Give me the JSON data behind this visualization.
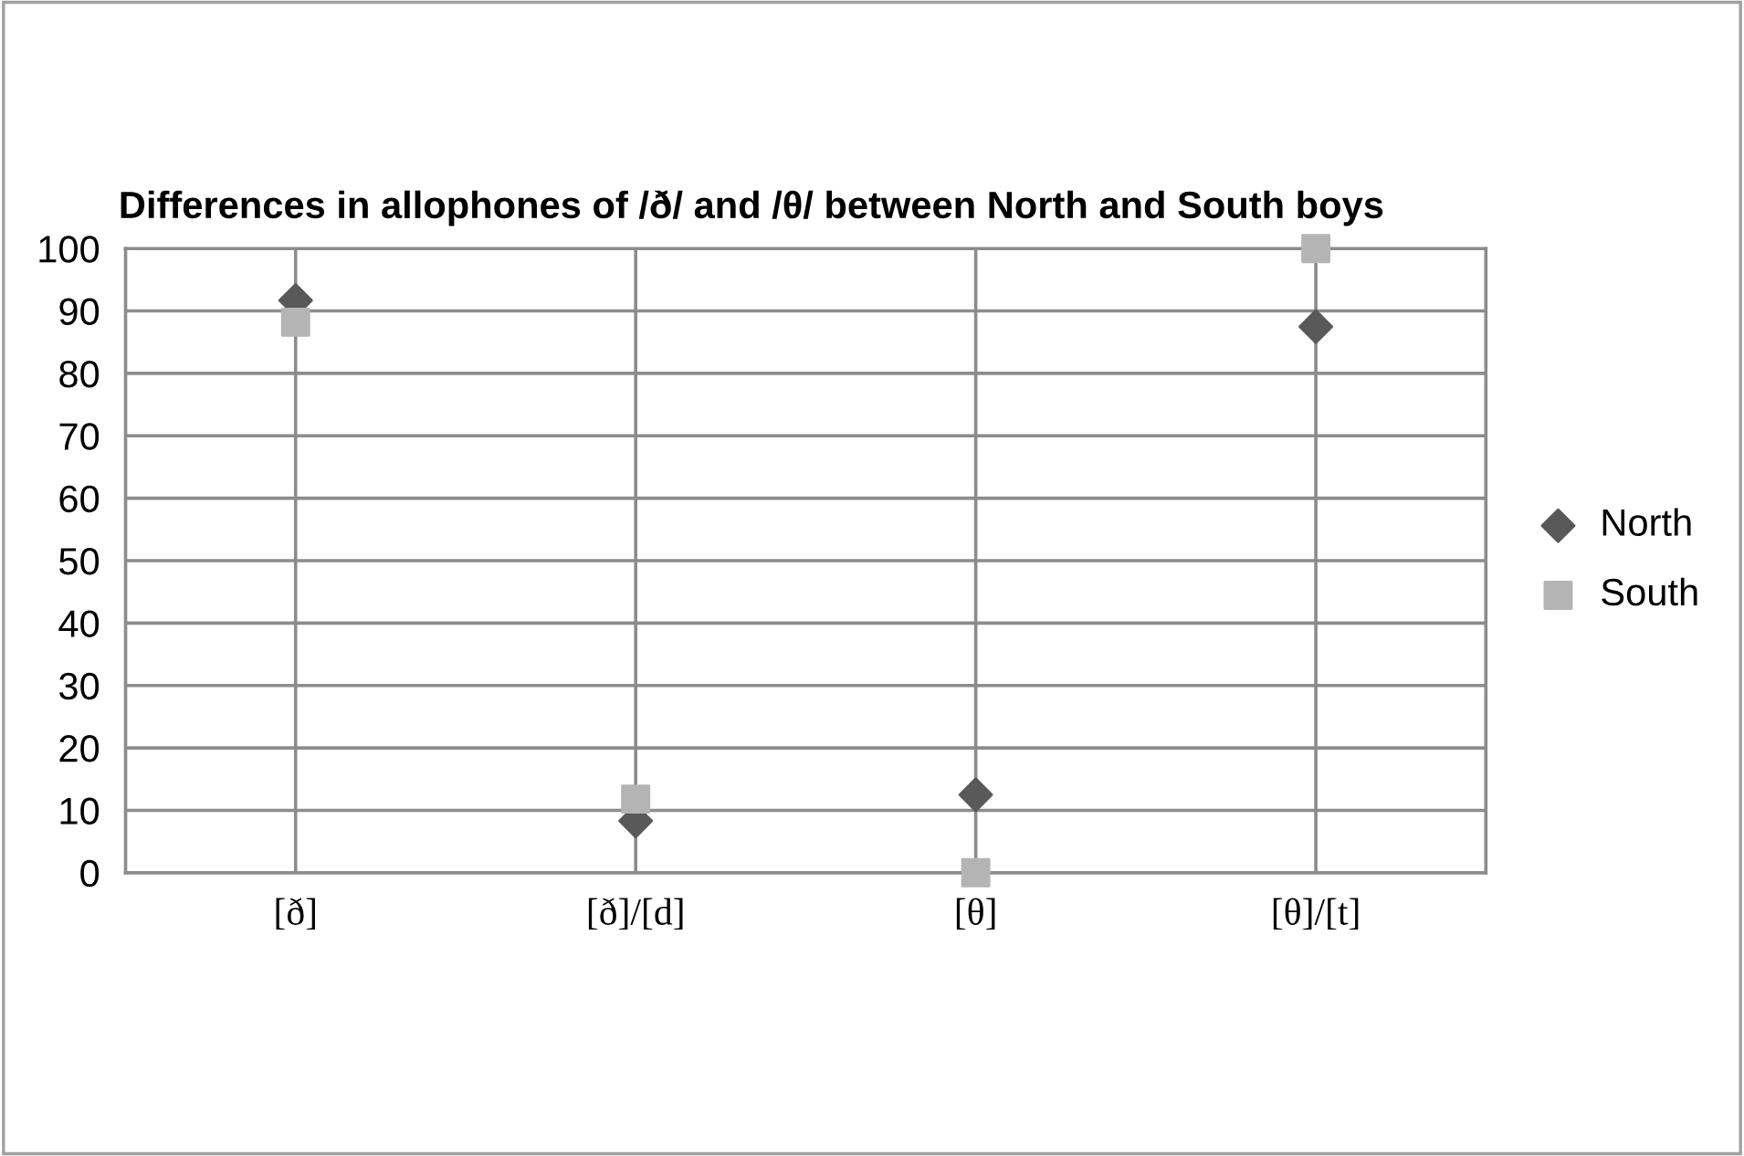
{
  "chart_data": {
    "type": "scatter",
    "title": "Differences in allophones of /ð/ and /θ/ between North and South boys",
    "categories": [
      "[ð]",
      "[ð]/[d]",
      "[θ]",
      "[θ]/[t]"
    ],
    "series": [
      {
        "name": "North",
        "color": "#595959",
        "marker": "diamond",
        "values": [
          91.7,
          8.3,
          12.5,
          87.5
        ]
      },
      {
        "name": "South",
        "color": "#b4b4b4",
        "marker": "square",
        "values": [
          88.2,
          11.8,
          0,
          100
        ]
      }
    ],
    "ylim": [
      0,
      100
    ],
    "yticks": [
      0,
      10,
      20,
      30,
      40,
      50,
      60,
      70,
      80,
      90,
      100
    ],
    "grid": true,
    "legend": "right"
  }
}
